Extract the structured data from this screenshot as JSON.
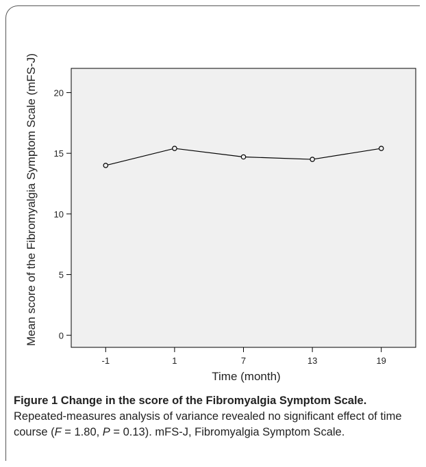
{
  "chart_data": {
    "type": "line",
    "categories": [
      "-1",
      "1",
      "7",
      "13",
      "19"
    ],
    "values": [
      14.0,
      15.4,
      14.7,
      14.5,
      15.4
    ],
    "title": "",
    "xlabel": "Time (month)",
    "ylabel": "Mean score of the Fibromyalgia Symptom Scale (mFS-J)",
    "ylim": [
      -1,
      22
    ],
    "yticks": [
      0,
      5,
      10,
      15,
      20
    ],
    "grid": false,
    "plot_background": "#f0f0f0",
    "line_color": "#000000",
    "marker": "open-circle"
  },
  "caption": {
    "figure_label": "Figure 1",
    "title": "Change in the score of the Fibromyalgia Symptom Scale.",
    "body_1": " Repeated-measures analysis of variance revealed no significant effect of time course (",
    "f_symbol": "F",
    "f_value": " = 1.80, ",
    "p_symbol": "P",
    "p_value": " = 0.13). mFS-J, Fibromyalgia Symptom Scale."
  }
}
